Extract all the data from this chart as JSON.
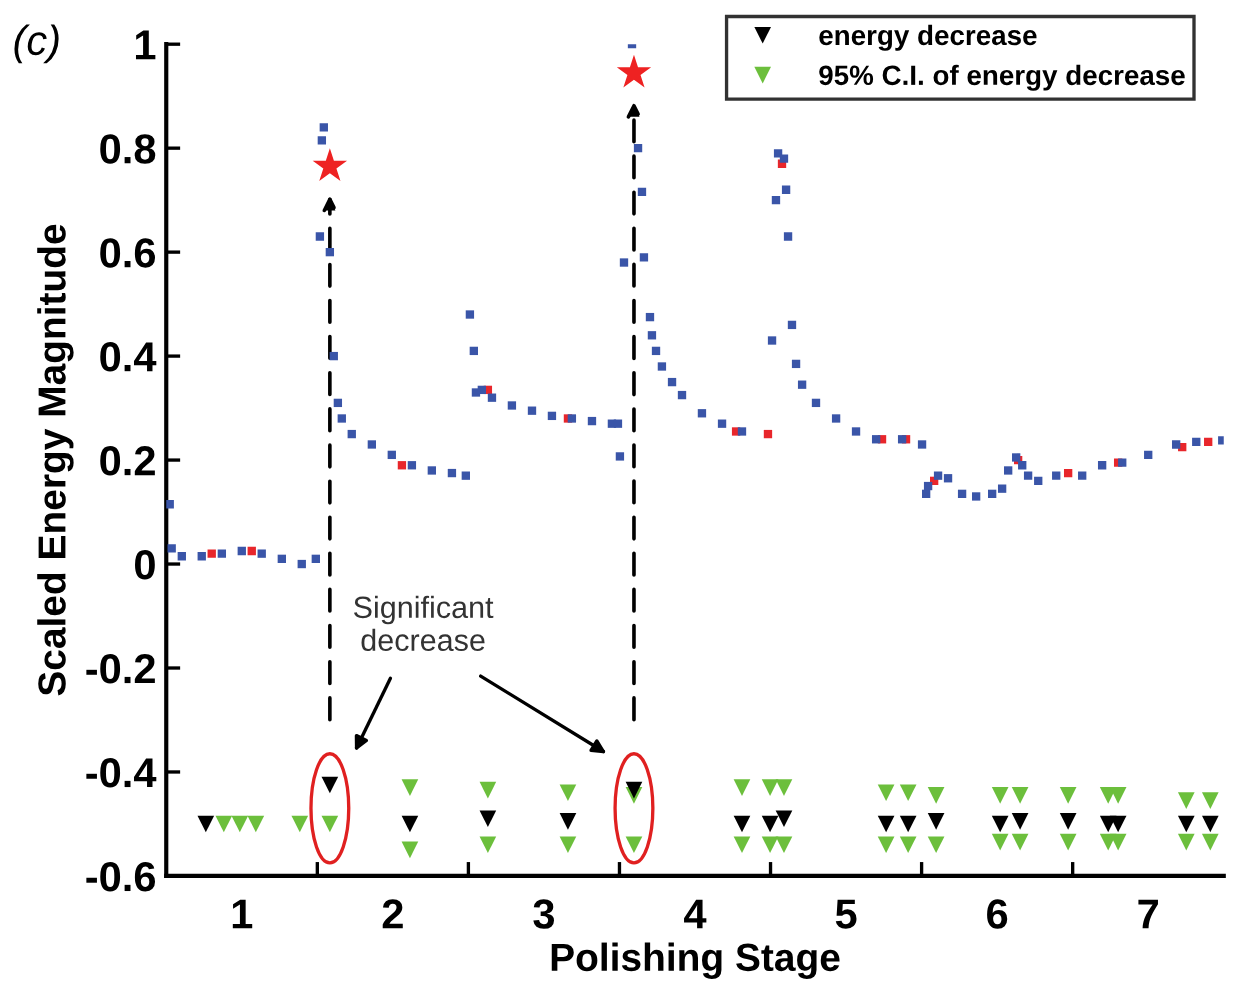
{
  "chart_data": {
    "type": "scatter",
    "title": "(c)",
    "xlabel": "Polishing Stage",
    "ylabel": "Scaled Energy Magnitude",
    "annotations": [
      "Significant\ndecrease"
    ],
    "xlim": [
      0.5,
      7.5
    ],
    "ylim": [
      -0.6,
      1
    ],
    "xticks": [
      1,
      {
        "value": 1.5,
        "label": null
      },
      2,
      {
        "value": 2.5,
        "label": null
      },
      3,
      {
        "value": 3.5,
        "label": null
      },
      4,
      {
        "value": 4.5,
        "label": null
      },
      5,
      {
        "value": 5.5,
        "label": null
      },
      6,
      {
        "value": 6.5,
        "label": null
      },
      7
    ],
    "yticks": [
      -0.6,
      -0.4,
      -0.2,
      0,
      0.2,
      0.4,
      0.6,
      0.8,
      1
    ],
    "grid": false,
    "legend": "top right",
    "series": [
      {
        "color": "#3a55a8",
        "marker": "square",
        "x": [
          0.523,
          0.536,
          0.603,
          0.735,
          0.868,
          1.0,
          1.132,
          1.265,
          1.397,
          1.49,
          1.517,
          1.53,
          1.543,
          1.583,
          1.609,
          1.636,
          1.662,
          1.728,
          1.861,
          1.993,
          2.126,
          2.258,
          2.391,
          2.483,
          2.51,
          2.536,
          2.55,
          2.589,
          2.656,
          2.788,
          2.921,
          3.053,
          3.185,
          3.318,
          3.45,
          3.49,
          3.503,
          3.53,
          3.583,
          3.623,
          3.649,
          3.662,
          3.702,
          3.715,
          3.742,
          3.781,
          3.848,
          3.914,
          4.046,
          4.179,
          4.311,
          4.483,
          4.51,
          4.536,
          4.55,
          4.589,
          4.603,
          4.616,
          4.642,
          4.669,
          4.709,
          4.801,
          4.934,
          5.066,
          5.199,
          5.371,
          5.503,
          5.53,
          5.543,
          5.609,
          5.675,
          5.768,
          5.861,
          5.967,
          6.033,
          6.073,
          6.126,
          6.166,
          6.205,
          6.272,
          6.391,
          6.47,
          6.563,
          6.695,
          6.828,
          7.0,
          7.185,
          7.318,
          7.49
        ],
        "values": [
          0.115,
          0.03,
          0.015,
          0.015,
          0.02,
          0.025,
          0.02,
          0.01,
          0.0,
          0.01,
          0.63,
          0.815,
          0.84,
          0.6,
          0.4,
          0.31,
          0.28,
          0.25,
          0.23,
          0.21,
          0.19,
          0.18,
          0.175,
          0.17,
          0.48,
          0.41,
          0.33,
          0.335,
          0.32,
          0.305,
          0.295,
          0.285,
          0.28,
          0.275,
          0.27,
          0.27,
          0.207,
          0.58,
          1.0,
          0.8,
          0.716,
          0.59,
          0.475,
          0.44,
          0.41,
          0.38,
          0.35,
          0.325,
          0.29,
          0.27,
          0.255,
          null,
          0.43,
          0.7,
          0.79,
          0.78,
          0.72,
          0.63,
          0.46,
          0.385,
          0.345,
          0.31,
          0.28,
          0.255,
          0.24,
          0.24,
          0.23,
          0.135,
          0.15,
          0.17,
          0.165,
          0.135,
          0.13,
          0.135,
          0.145,
          0.18,
          0.205,
          0.19,
          0.17,
          0.16,
          0.17,
          null,
          0.17,
          0.19,
          0.195,
          0.21,
          0.23,
          0.235,
          0.238
        ]
      },
      {
        "color": "#e8262b",
        "marker": "square",
        "x": [
          0.801,
          1.066,
          2.06,
          2.629,
          3.159,
          4.272,
          4.483,
          4.576,
          5.238,
          5.397,
          5.583,
          6.139,
          6.47,
          6.801,
          7.225,
          7.397
        ],
        "values": [
          0.02,
          0.025,
          0.19,
          0.335,
          0.28,
          0.255,
          0.25,
          0.77,
          0.24,
          0.24,
          0.16,
          0.2,
          0.175,
          0.195,
          0.225,
          0.235
        ]
      },
      {
        "name": "energy decrease",
        "color": "#000000",
        "marker": "triangle",
        "x": [
          0.762,
          1.583,
          2.113,
          2.629,
          3.159,
          3.596,
          4.311,
          4.497,
          4.589,
          5.265,
          5.411,
          5.596,
          6.02,
          6.152,
          6.47,
          6.735,
          6.801,
          7.252,
          7.411
        ],
        "values": [
          -0.5,
          -0.425,
          -0.5,
          -0.49,
          -0.495,
          -0.435,
          -0.5,
          -0.5,
          -0.49,
          -0.5,
          -0.5,
          -0.495,
          -0.5,
          -0.495,
          -0.495,
          -0.5,
          -0.5,
          -0.5,
          -0.5
        ]
      },
      {
        "name": "95% C.I. of energy decrease",
        "color": "#6cbf3c",
        "marker": "triangle",
        "x": [
          0.881,
          0.987,
          1.093,
          1.384,
          1.583,
          2.113,
          2.113,
          2.629,
          2.629,
          3.159,
          3.159,
          3.596,
          3.596,
          4.311,
          4.311,
          4.497,
          4.497,
          4.589,
          4.589,
          5.265,
          5.265,
          5.411,
          5.411,
          5.596,
          5.596,
          6.02,
          6.02,
          6.152,
          6.152,
          6.47,
          6.47,
          6.735,
          6.735,
          6.801,
          6.801,
          7.252,
          7.252,
          7.411,
          7.411
        ],
        "values": [
          -0.5,
          -0.5,
          -0.5,
          -0.5,
          -0.5,
          -0.43,
          -0.55,
          -0.435,
          -0.54,
          -0.44,
          -0.54,
          -0.445,
          -0.54,
          -0.43,
          -0.54,
          -0.43,
          -0.54,
          -0.43,
          -0.54,
          -0.44,
          -0.54,
          -0.44,
          -0.54,
          -0.445,
          -0.54,
          -0.445,
          -0.535,
          -0.445,
          -0.535,
          -0.445,
          -0.535,
          -0.445,
          -0.535,
          -0.445,
          -0.535,
          -0.455,
          -0.535,
          -0.455,
          -0.535
        ]
      },
      {
        "color": "#ee2222",
        "marker": "star",
        "x": [
          1.583,
          3.596
        ],
        "values": [
          0.765,
          0.945
        ]
      }
    ]
  }
}
